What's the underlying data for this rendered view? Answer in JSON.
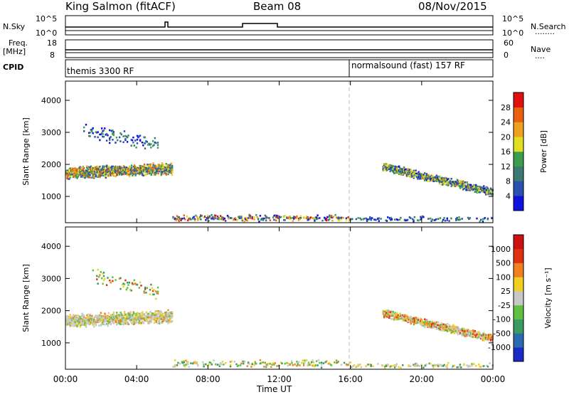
{
  "header": {
    "station": "King Salmon (fitACF)",
    "beam": "Beam 08",
    "date": "08/Nov/2015"
  },
  "nsky_panel": {
    "left_label": "N.Sky",
    "left_ticks": [
      "10^5",
      "10^0"
    ],
    "right_label": "N.Search",
    "right_ticks": [
      "10^5",
      "10^0"
    ],
    "right_dots": "........"
  },
  "freq_panel": {
    "left_label_line1": "Freq.",
    "left_label_line2": "[MHz]",
    "left_ticks": [
      "18",
      "8"
    ],
    "right_label": "Nave",
    "right_ticks": [
      "60",
      "0"
    ],
    "right_dots": "...."
  },
  "cpid_panel": {
    "label": "CPID",
    "programs": [
      {
        "name": "themis 3300 RF",
        "start_hour": 0
      },
      {
        "name": "normalsound (fast) 157 RF",
        "start_hour": 16
      }
    ]
  },
  "time_axis": {
    "xlabel": "Time UT",
    "tick_labels": [
      "00:00",
      "04:00",
      "08:00",
      "12:00",
      "16:00",
      "20:00",
      "00:00"
    ],
    "tick_hours": [
      0,
      4,
      8,
      12,
      16,
      20,
      24
    ]
  },
  "chart_data": [
    {
      "type": "heatmap",
      "parameter": "power",
      "ylabel": "Slant Range [km]",
      "xlabel": "Time UT",
      "xlim_hours": [
        0,
        24
      ],
      "ylim_km": [
        180,
        4600
      ],
      "ytick_values": [
        1000,
        2000,
        3000,
        4000
      ],
      "ytick_labels": [
        "1000",
        "2000",
        "3000",
        "4000"
      ],
      "colorbar": {
        "label": "Power [dB]",
        "tick_labels": [
          "4",
          "8",
          "12",
          "16",
          "20",
          "24",
          "28"
        ],
        "colors": [
          "#1010e0",
          "#2a50b0",
          "#3a7a70",
          "#3aa050",
          "#e0e020",
          "#f0a020",
          "#e86010",
          "#e01010"
        ]
      },
      "scatter_regions": [
        {
          "name": "early-band",
          "t_start": 0.0,
          "t_end": 6.0,
          "r_center_start": 1750,
          "r_center_end": 1900,
          "spread": 200,
          "levels": [
            1,
            2,
            3,
            4,
            5,
            6
          ],
          "density": 0.9
        },
        {
          "name": "early-high",
          "t_start": 1.0,
          "t_end": 5.2,
          "r_center_start": 3100,
          "r_center_end": 2600,
          "spread": 280,
          "levels": [
            0,
            1,
            2,
            3
          ],
          "density": 0.35
        },
        {
          "name": "mid-low",
          "t_start": 6.0,
          "t_end": 16.0,
          "r_center_start": 350,
          "r_center_end": 350,
          "spread": 110,
          "levels": [
            0,
            1,
            2,
            3,
            4,
            5,
            6,
            7
          ],
          "density": 0.35
        },
        {
          "name": "late-band",
          "t_start": 17.8,
          "t_end": 24.0,
          "r_center_start": 1950,
          "r_center_end": 1150,
          "spread": 140,
          "levels": [
            0,
            1,
            2,
            3,
            4,
            5
          ],
          "density": 0.8
        },
        {
          "name": "late-low",
          "t_start": 16.0,
          "t_end": 24.0,
          "r_center_start": 320,
          "r_center_end": 320,
          "spread": 90,
          "levels": [
            0,
            1,
            2,
            3
          ],
          "density": 0.25
        }
      ]
    },
    {
      "type": "heatmap",
      "parameter": "velocity",
      "ylabel": "Slant Range [km]",
      "xlabel": "Time UT",
      "xlim_hours": [
        0,
        24
      ],
      "ylim_km": [
        180,
        4600
      ],
      "ytick_values": [
        1000,
        2000,
        3000,
        4000
      ],
      "ytick_labels": [
        "1000",
        "2000",
        "3000",
        "4000"
      ],
      "colorbar": {
        "label": "Velocity [m s⁻¹]",
        "tick_labels": [
          "1000",
          "500",
          "100",
          "25",
          "-25",
          "-100",
          "-500",
          "-1000"
        ],
        "colors": [
          "#1a2ac8",
          "#2a6ab0",
          "#3a9a60",
          "#60c040",
          "#c8c8c8",
          "#f0d020",
          "#f08020",
          "#e03010",
          "#d01010"
        ]
      },
      "scatter_regions": [
        {
          "name": "early-band",
          "t_start": 0.0,
          "t_end": 6.0,
          "r_center_start": 1700,
          "r_center_end": 1850,
          "spread": 220,
          "levels": [
            4,
            4,
            4,
            5,
            6,
            3
          ],
          "density": 0.9
        },
        {
          "name": "early-high",
          "t_start": 1.5,
          "t_end": 5.2,
          "r_center_start": 3100,
          "r_center_end": 2600,
          "spread": 280,
          "levels": [
            5,
            6,
            7,
            3,
            2
          ],
          "density": 0.3
        },
        {
          "name": "mid-low",
          "t_start": 6.0,
          "t_end": 16.0,
          "r_center_start": 380,
          "r_center_end": 380,
          "spread": 130,
          "levels": [
            2,
            3,
            4,
            5,
            6
          ],
          "density": 0.3
        },
        {
          "name": "late-band",
          "t_start": 17.8,
          "t_end": 24.0,
          "r_center_start": 1950,
          "r_center_end": 1150,
          "spread": 140,
          "levels": [
            4,
            4,
            5,
            6,
            7,
            3
          ],
          "density": 0.8
        },
        {
          "name": "late-low",
          "t_start": 16.0,
          "t_end": 24.0,
          "r_center_start": 320,
          "r_center_end": 320,
          "spread": 90,
          "levels": [
            4,
            5,
            2
          ],
          "density": 0.25
        }
      ]
    }
  ]
}
